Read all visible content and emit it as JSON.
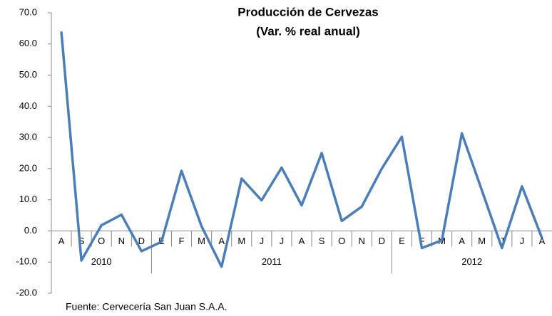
{
  "chart_data": {
    "type": "line",
    "title": [
      "Producción de Cervezas",
      "(Var. % real anual)"
    ],
    "category_groups": [
      {
        "label": "2010",
        "categories": [
          "A",
          "S",
          "O",
          "N",
          "D"
        ]
      },
      {
        "label": "2011",
        "categories": [
          "E",
          "F",
          "M",
          "A",
          "M",
          "J",
          "J",
          "A",
          "S",
          "O",
          "N",
          "D"
        ]
      },
      {
        "label": "2012",
        "categories": [
          "E",
          "F",
          "M",
          "A",
          "M",
          "J",
          "J",
          "A"
        ]
      }
    ],
    "series": [
      {
        "name": "Producción de Cervezas",
        "color": "#4a7ebb",
        "values": [
          64.0,
          -9.5,
          1.8,
          5.2,
          -6.5,
          -3.5,
          19.3,
          1.5,
          -11.5,
          16.8,
          9.8,
          20.3,
          8.2,
          25.0,
          3.2,
          7.8,
          20.0,
          30.2,
          -5.5,
          -3.0,
          31.3,
          13.0,
          -5.5,
          14.3,
          -2.3
        ]
      }
    ],
    "ylim": [
      -20,
      70
    ],
    "yticks": [
      {
        "value": -20,
        "label": "-20.0"
      },
      {
        "value": -10,
        "label": "-10.0"
      },
      {
        "value": 0,
        "label": "0.0"
      },
      {
        "value": 10,
        "label": "10.0"
      },
      {
        "value": 20,
        "label": "20.0"
      },
      {
        "value": 30,
        "label": "30.0"
      },
      {
        "value": 40,
        "label": "40.0"
      },
      {
        "value": 50,
        "label": "50.0"
      },
      {
        "value": 60,
        "label": "60.0"
      },
      {
        "value": 70,
        "label": "70.0"
      }
    ],
    "grid": false,
    "source": "Fuente: Cervecería San Juan S.A.A."
  }
}
